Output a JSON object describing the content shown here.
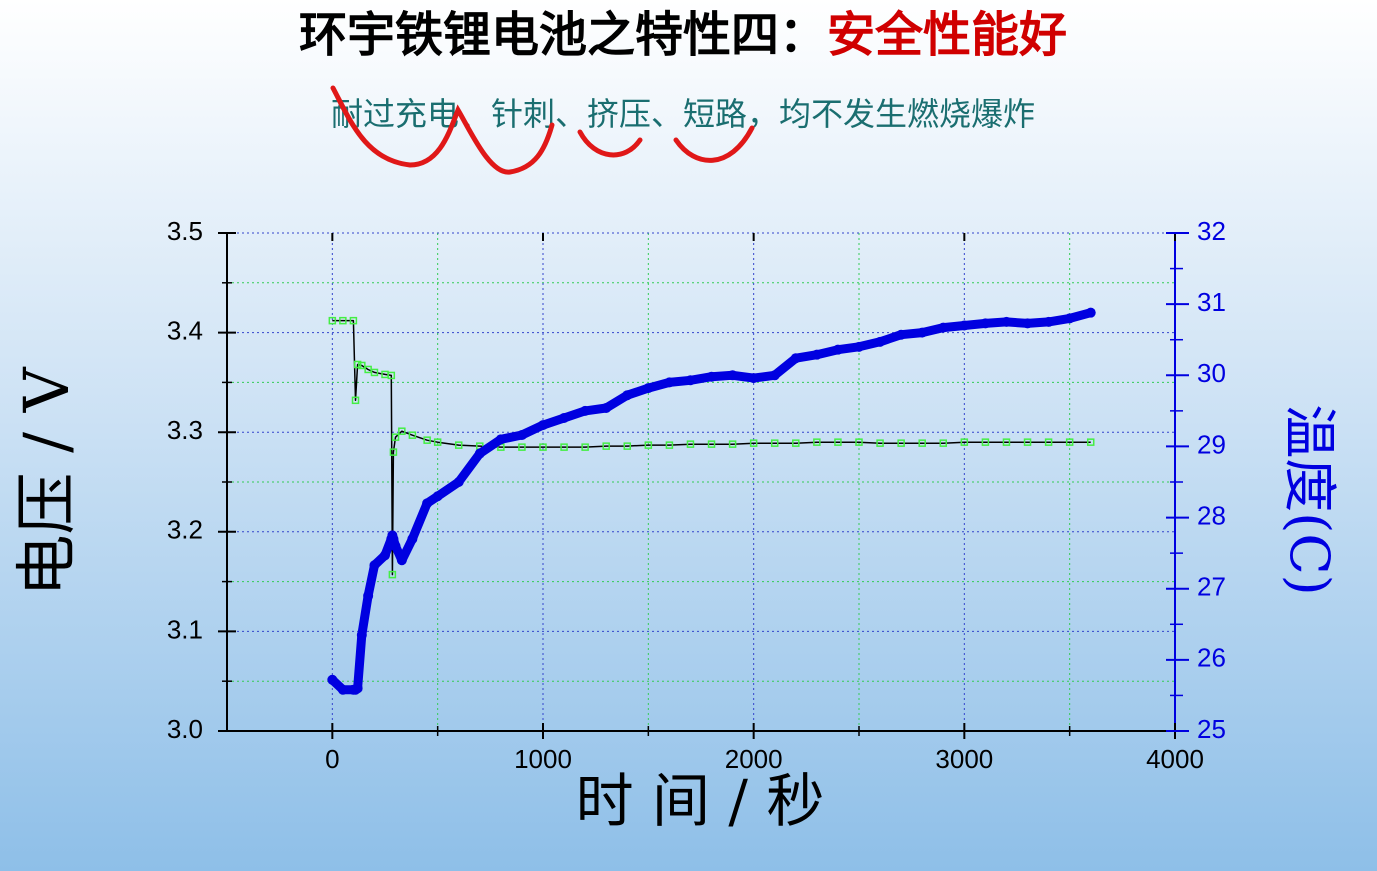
{
  "chart_data": {
    "type": "line",
    "title": "环宇铁锂电池之特性四：",
    "title_highlight": "安全性能好",
    "subtitle": "耐过充电、针刺、挤压、短路，均不发生燃烧爆炸",
    "x_label": "时 间 / 秒",
    "y_label": "电压 / V",
    "y2_label": "温度(C)",
    "x": [
      0,
      50,
      100,
      110,
      120,
      140,
      170,
      200,
      250,
      280,
      285,
      290,
      300,
      330,
      380,
      450,
      500,
      600,
      700,
      800,
      900,
      1000,
      1100,
      1200,
      1300,
      1400,
      1500,
      1600,
      1700,
      1800,
      1900,
      2000,
      2100,
      2200,
      2300,
      2400,
      2500,
      2600,
      2700,
      2800,
      2900,
      3000,
      3100,
      3200,
      3300,
      3400,
      3500,
      3600
    ],
    "series": [
      {
        "color": "#44ee44",
        "axis": "y",
        "marker": "square",
        "values": [
          3.412,
          3.412,
          3.412,
          3.332,
          3.368,
          3.367,
          3.363,
          3.36,
          3.358,
          3.357,
          3.157,
          3.28,
          3.295,
          3.301,
          3.297,
          3.292,
          3.29,
          3.287,
          3.286,
          3.285,
          3.285,
          3.285,
          3.285,
          3.285,
          3.286,
          3.286,
          3.287,
          3.287,
          3.288,
          3.288,
          3.288,
          3.289,
          3.289,
          3.289,
          3.29,
          3.29,
          3.29,
          3.289,
          3.289,
          3.289,
          3.289,
          3.29,
          3.29,
          3.29,
          3.29,
          3.29,
          3.29,
          3.29
        ]
      },
      {
        "color": "#0000e0",
        "axis": "y2",
        "marker": "circle",
        "values": [
          25.72,
          25.58,
          25.58,
          25.58,
          25.6,
          26.35,
          26.9,
          27.33,
          27.47,
          27.7,
          27.75,
          27.7,
          27.6,
          27.4,
          27.7,
          28.2,
          28.3,
          28.5,
          28.9,
          29.1,
          29.16,
          29.3,
          29.4,
          29.5,
          29.54,
          29.72,
          29.82,
          29.9,
          29.93,
          29.98,
          30.0,
          29.96,
          30.0,
          30.24,
          30.29,
          30.36,
          30.4,
          30.47,
          30.57,
          30.6,
          30.67,
          30.7,
          30.73,
          30.75,
          30.73,
          30.75,
          30.8,
          30.88
        ]
      }
    ],
    "xlim": [
      -500,
      4000
    ],
    "xticks": [
      0,
      1000,
      2000,
      3000,
      4000
    ],
    "xminor": [
      500,
      1500,
      2500,
      3500
    ],
    "ylim": [
      3.0,
      3.5
    ],
    "yticks": [
      {
        "value": 3,
        "label": "3.0"
      },
      3.1,
      3.2,
      3.3,
      3.4,
      3.5
    ],
    "yminor": [
      3.05,
      3.15,
      3.25,
      3.35,
      3.45
    ],
    "y2lim": [
      25,
      32
    ],
    "y2ticks": [
      25,
      26,
      27,
      28,
      29,
      30,
      31,
      32
    ],
    "y2minor": [
      25.5,
      26.5,
      27.5,
      28.5,
      29.5,
      30.5,
      31.5
    ],
    "y2color": "#0000e0",
    "grid": true
  }
}
